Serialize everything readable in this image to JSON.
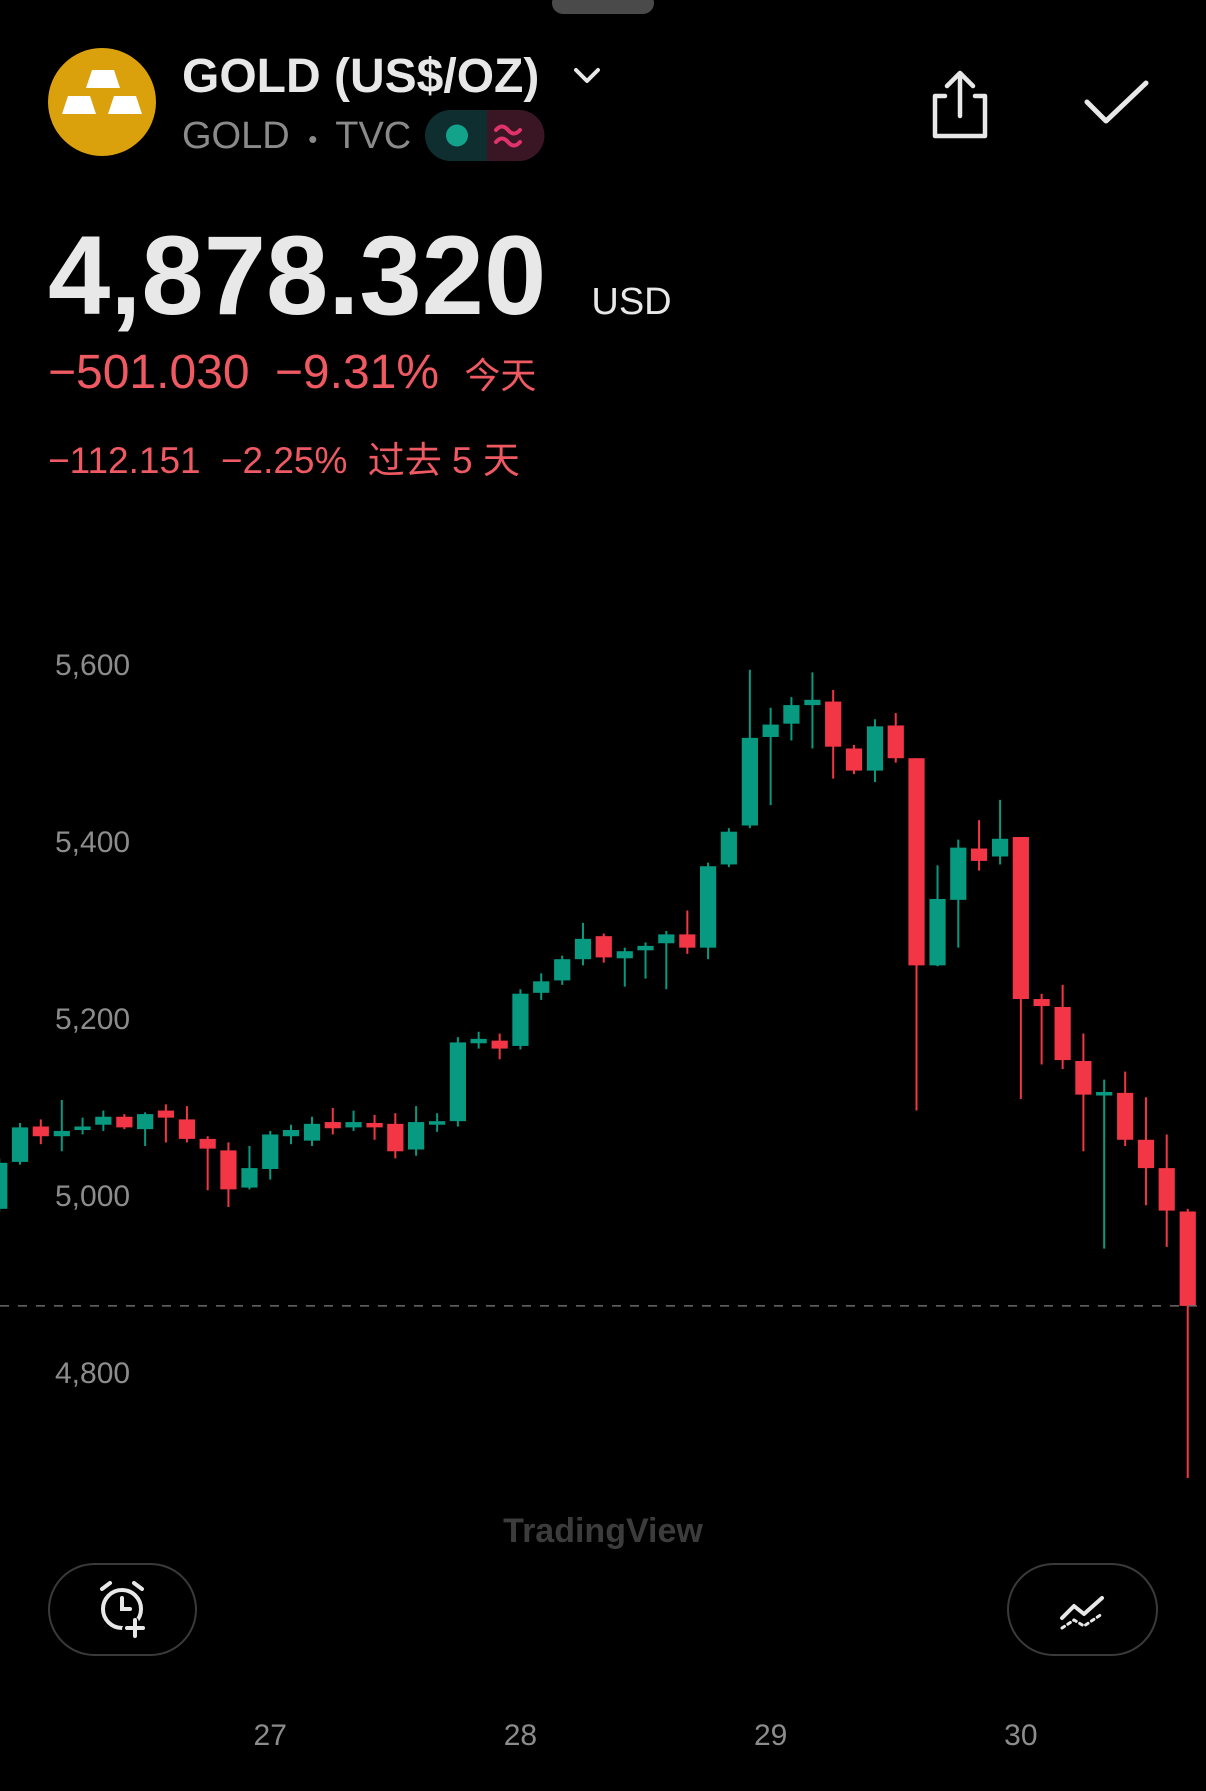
{
  "header": {
    "title": "GOLD (US$/OZ)",
    "symbol": "GOLD",
    "separator": "•",
    "exchange": "TVC"
  },
  "quote": {
    "price": "4,878.320",
    "currency": "USD",
    "change": "−501.030",
    "change_percent": "−9.31%",
    "change_period": "今天",
    "change_5d": "−112.151",
    "change_5d_percent": "−2.25%",
    "change_5d_period": "过去 5 天"
  },
  "watermark": "TradingView",
  "chart_data": {
    "type": "candlestick",
    "x": [
      25.917,
      26,
      26.083,
      26.167,
      26.25,
      26.333,
      26.417,
      26.5,
      26.583,
      26.667,
      26.75,
      26.833,
      26.917,
      27,
      27.083,
      27.167,
      27.25,
      27.333,
      27.417,
      27.5,
      27.583,
      27.667,
      27.75,
      27.833,
      27.917,
      28,
      28.083,
      28.167,
      28.25,
      28.333,
      28.417,
      28.5,
      28.583,
      28.667,
      28.75,
      28.833,
      28.917,
      29,
      29.083,
      29.167,
      29.25,
      29.333,
      29.417,
      29.5,
      29.583,
      29.667,
      29.75,
      29.833,
      29.917,
      30,
      30.083,
      30.167,
      30.25,
      30.333,
      30.417,
      30.5,
      30.583,
      30.667
    ],
    "open": [
      4988,
      5041,
      5081,
      5070,
      5077,
      5083,
      5092,
      5078,
      5099,
      5089,
      5067,
      5054,
      5012,
      5033,
      5070,
      5065,
      5086,
      5080,
      5085,
      5084,
      5055,
      5083,
      5087,
      5175,
      5178,
      5172,
      5232,
      5246,
      5270,
      5296,
      5271,
      5280,
      5288,
      5298,
      5283,
      5377,
      5421,
      5521,
      5536,
      5557,
      5561,
      5508,
      5483,
      5534,
      5497,
      5263,
      5337,
      5395,
      5386,
      5408,
      5225,
      5216,
      5155,
      5116,
      5119,
      5066,
      5034,
      4985
    ],
    "high": [
      5045,
      5085,
      5089,
      5111,
      5091,
      5099,
      5095,
      5097,
      5106,
      5104,
      5070,
      5063,
      5059,
      5076,
      5083,
      5092,
      5102,
      5099,
      5094,
      5096,
      5104,
      5096,
      5182,
      5188,
      5186,
      5236,
      5254,
      5274,
      5311,
      5299,
      5283,
      5289,
      5302,
      5325,
      5379,
      5418,
      5597,
      5554,
      5566,
      5594,
      5574,
      5512,
      5541,
      5548,
      5497,
      5376,
      5405,
      5427,
      5450,
      5408,
      5231,
      5241,
      5186,
      5134,
      5143,
      5114,
      5072,
      4988
    ],
    "low": [
      4985,
      5038,
      5061,
      5053,
      5072,
      5076,
      5078,
      5059,
      5063,
      5063,
      5009,
      4990,
      5010,
      5021,
      5061,
      5059,
      5072,
      5076,
      5066,
      5045,
      5048,
      5075,
      5081,
      5169,
      5157,
      5168,
      5224,
      5241,
      5263,
      5266,
      5239,
      5248,
      5236,
      5276,
      5270,
      5374,
      5418,
      5444,
      5517,
      5508,
      5474,
      5479,
      5470,
      5492,
      5099,
      5262,
      5283,
      5370,
      5377,
      5112,
      5151,
      5146,
      5053,
      4943,
      5059,
      4992,
      4945,
      4684
    ],
    "close": [
      5040,
      5080,
      5070,
      5076,
      5081,
      5092,
      5080,
      5095,
      5091,
      5067,
      5056,
      5010,
      5034,
      5072,
      5077,
      5084,
      5079,
      5086,
      5080,
      5053,
      5086,
      5087,
      5176,
      5180,
      5169,
      5231,
      5245,
      5270,
      5293,
      5272,
      5279,
      5285,
      5298,
      5283,
      5375,
      5414,
      5520,
      5535,
      5557,
      5563,
      5510,
      5483,
      5533,
      5497,
      5263,
      5338,
      5396,
      5381,
      5406,
      5225,
      5217,
      5156,
      5117,
      5120,
      5066,
      5034,
      4986,
      4878.32
    ],
    "up_color": "#089981",
    "down_color": "#f23645",
    "xlim": [
      25.92,
      30.74
    ],
    "xticks": [
      27,
      28,
      29,
      30
    ],
    "ylim": [
      4660,
      5720
    ],
    "yticks": [
      {
        "value": 4800,
        "label": "4,800"
      },
      {
        "value": 5000,
        "label": "5,000"
      },
      {
        "value": 5200,
        "label": "5,200"
      },
      {
        "value": 5400,
        "label": "5,400"
      },
      {
        "value": 5600,
        "label": "5,600"
      }
    ],
    "grid": false,
    "price_line": true
  }
}
